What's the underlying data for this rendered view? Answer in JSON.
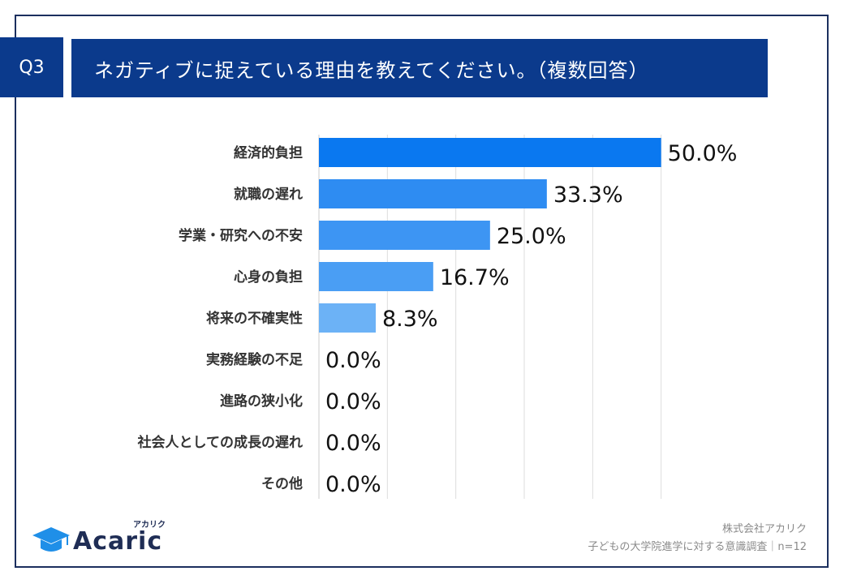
{
  "question": {
    "badge": "Q3",
    "title": "ネガティブに捉えている理由を教えてください。（複数回答）"
  },
  "chart_data": {
    "type": "bar",
    "orientation": "horizontal",
    "title": "ネガティブに捉えている理由を教えてください。（複数回答）",
    "categories": [
      "経済的負担",
      "就職の遅れ",
      "学業・研究への不安",
      "心身の負担",
      "将来の不確実性",
      "実務経験の不足",
      "進路の狭小化",
      "社会人としての成長の遅れ",
      "その他"
    ],
    "values": [
      50.0,
      33.3,
      25.0,
      16.7,
      8.3,
      0.0,
      0.0,
      0.0,
      0.0
    ],
    "value_labels": [
      "50.0%",
      "33.3%",
      "25.0%",
      "16.7%",
      "8.3%",
      "0.0%",
      "0.0%",
      "0.0%",
      "0.0%"
    ],
    "bar_colors": [
      "#0a78f0",
      "#2e8cf2",
      "#3d95f3",
      "#4a9ef4",
      "#6cb2f6",
      "#a6d0f8",
      "#a6d0f8",
      "#a6d0f8",
      "#a6d0f8"
    ],
    "xlim": [
      0,
      60
    ],
    "gridlines": [
      10,
      20,
      30,
      40,
      50
    ],
    "grid": true,
    "legend": "none"
  },
  "logo": {
    "word": "Acaric",
    "kana": "アカリク"
  },
  "footer": {
    "company": "株式会社アカリク",
    "survey": "子どもの大学院進学に対する意識調査｜n=12"
  },
  "colors": {
    "title_bg": "#0b3a8c",
    "frame": "#1b2f5e",
    "logo": "#1f2d55"
  }
}
